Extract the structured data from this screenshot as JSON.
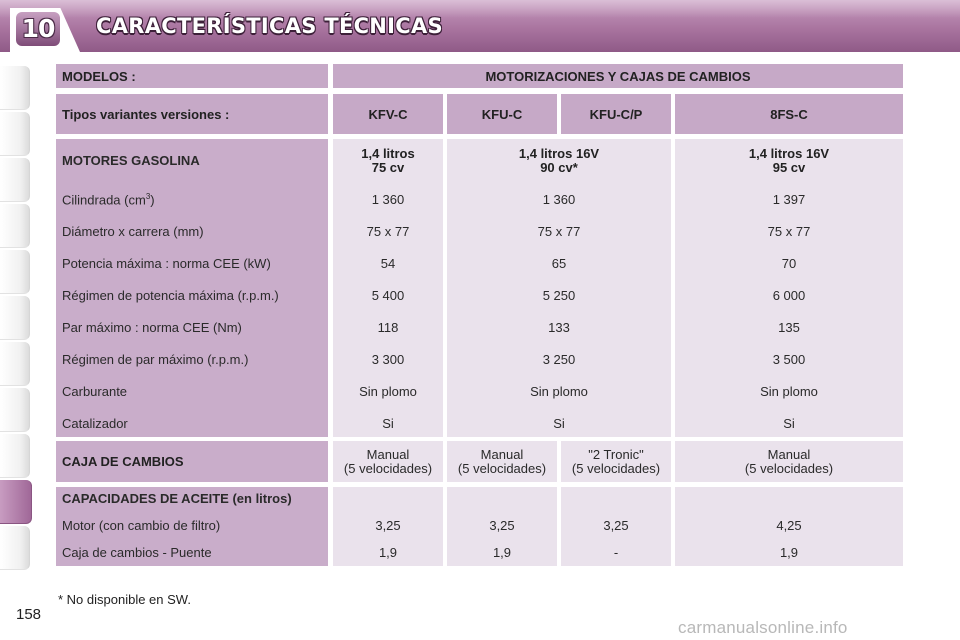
{
  "chapter_number": "10",
  "page_title": "CARACTERÍSTICAS TÉCNICAS",
  "page_number": "158",
  "header": {
    "models_label": "MODELOS :",
    "engines_label": "MOTORIZACIONES Y CAJAS DE CAMBIOS"
  },
  "variants": {
    "label": "Tipos variantes versiones :",
    "codes": [
      "KFV-C",
      "KFU-C",
      "KFU-C/P",
      "8FS-C"
    ]
  },
  "petrol": {
    "label": "MOTORES GASOLINA",
    "engines": [
      {
        "line1": "1,4 litros",
        "line2": "75 cv"
      },
      {
        "line1": "1,4 litros 16V",
        "line2": "90 cv*"
      },
      {
        "line1": "1,4 litros 16V",
        "line2": "95 cv"
      }
    ],
    "rows": [
      {
        "label": "Cilindrada (cm",
        "sup": "3",
        "label_end": ")",
        "values": [
          "1 360",
          "1 360",
          "1 397"
        ]
      },
      {
        "label": "Diámetro x carrera (mm)",
        "values": [
          "75 x 77",
          "75 x 77",
          "75 x 77"
        ]
      },
      {
        "label": "Potencia máxima : norma CEE (kW)",
        "values": [
          "54",
          "65",
          "70"
        ]
      },
      {
        "label": "Régimen de potencia máxima (r.p.m.)",
        "values": [
          "5 400",
          "5 250",
          "6 000"
        ]
      },
      {
        "label": "Par máximo : norma CEE (Nm)",
        "values": [
          "118",
          "133",
          "135"
        ]
      },
      {
        "label": "Régimen de par máximo (r.p.m.)",
        "values": [
          "3 300",
          "3 250",
          "3 500"
        ]
      },
      {
        "label": "Carburante",
        "values": [
          "Sin plomo",
          "Sin plomo",
          "Sin plomo"
        ]
      },
      {
        "label": "Catalizador",
        "values": [
          "Si",
          "Si",
          "Si"
        ]
      }
    ]
  },
  "gearbox": {
    "label": "CAJA DE CAMBIOS",
    "values": [
      {
        "line1": "Manual",
        "line2": "(5 velocidades)"
      },
      {
        "line1": "Manual",
        "line2": "(5 velocidades)"
      },
      {
        "line1": "\"2 Tronic\"",
        "line2": "(5 velocidades)"
      },
      {
        "line1": "Manual",
        "line2": "(5 velocidades)"
      }
    ]
  },
  "oil": {
    "label": "CAPACIDADES DE ACEITE (en litros)",
    "rows": [
      {
        "label": "Motor (con cambio de filtro)",
        "values": [
          "3,25",
          "3,25",
          "3,25",
          "4,25"
        ]
      },
      {
        "label": "Caja de cambios - Puente",
        "values": [
          "1,9",
          "1,9",
          "-",
          "1,9"
        ]
      }
    ]
  },
  "footnote": "* No disponible en SW.",
  "watermark": "carmanualsonline.info",
  "colors": {
    "header_band": "#a9749f",
    "table_header": "#c6a9c7",
    "table_light": "#eae2ec",
    "side_tab_active": "#a06898"
  }
}
